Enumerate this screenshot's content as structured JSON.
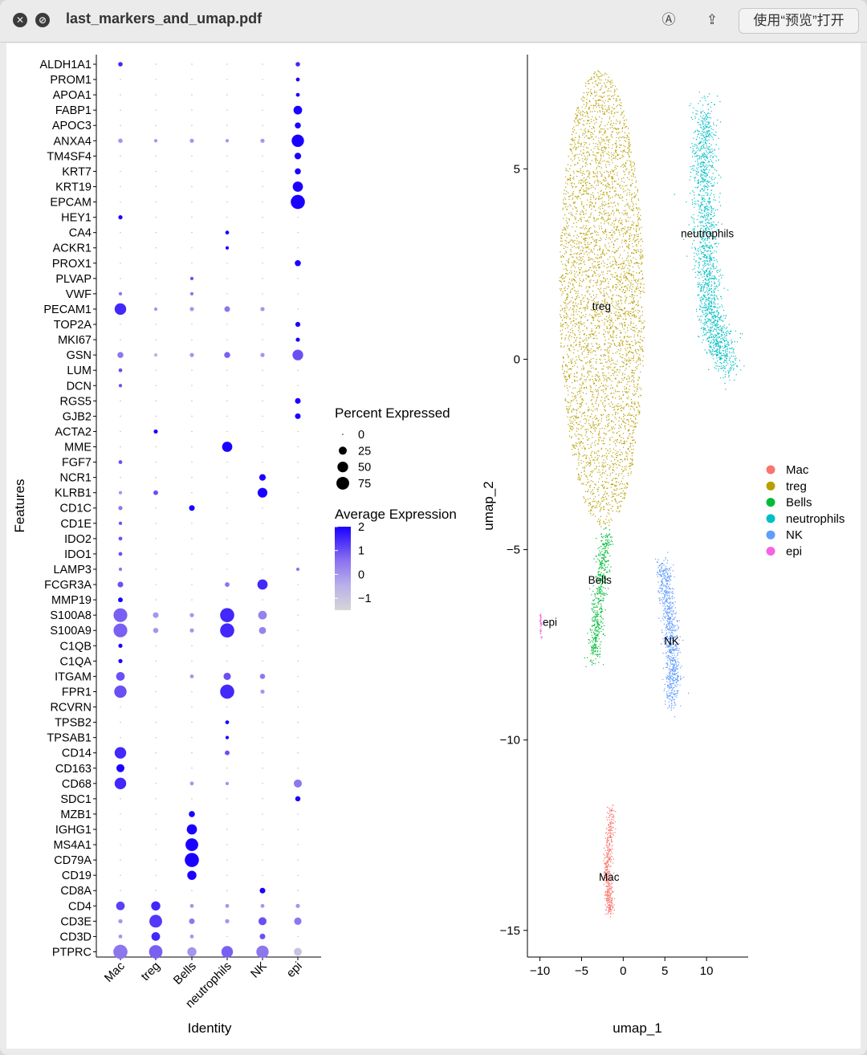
{
  "window": {
    "title": "last_markers_and_umap.pdf",
    "open_button_label": "使用“预览”打开",
    "close_icon": "close-icon",
    "stop_icon": "stop-icon",
    "markup_icon": "markup-icon",
    "share_icon": "share-icon"
  },
  "chart_data": [
    {
      "type": "dotplot",
      "title": "",
      "xlabel": "Identity",
      "ylabel": "Features",
      "categories": [
        "Mac",
        "treg",
        "Bells",
        "neutrophils",
        "NK",
        "epi"
      ],
      "features": [
        "ALDH1A1",
        "PROM1",
        "APOA1",
        "FABP1",
        "APOC3",
        "ANXA4",
        "TM4SF4",
        "KRT7",
        "KRT19",
        "EPCAM",
        "HEY1",
        "CA4",
        "ACKR1",
        "PROX1",
        "PLVAP",
        "VWF",
        "PECAM1",
        "TOP2A",
        "MKI67",
        "GSN",
        "LUM",
        "DCN",
        "RGS5",
        "GJB2",
        "ACTA2",
        "MME",
        "FGF7",
        "NCR1",
        "KLRB1",
        "CD1C",
        "CD1E",
        "IDO2",
        "IDO1",
        "LAMP3",
        "FCGR3A",
        "MMP19",
        "S100A8",
        "S100A9",
        "C1QB",
        "C1QA",
        "ITGAM",
        "FPR1",
        "RCVRN",
        "TPSB2",
        "TPSAB1",
        "CD14",
        "CD163",
        "CD68",
        "SDC1",
        "MZB1",
        "IGHG1",
        "MS4A1",
        "CD79A",
        "CD19",
        "CD8A",
        "CD4",
        "CD3E",
        "CD3D",
        "PTPRC"
      ],
      "percent_expressed": [
        [
          5,
          0,
          0,
          0,
          0,
          5
        ],
        [
          0,
          0,
          0,
          0,
          0,
          3
        ],
        [
          0,
          0,
          0,
          0,
          0,
          3
        ],
        [
          0,
          0,
          0,
          0,
          0,
          30
        ],
        [
          0,
          0,
          0,
          0,
          0,
          12
        ],
        [
          5,
          2,
          4,
          2,
          4,
          70
        ],
        [
          0,
          0,
          0,
          0,
          0,
          15
        ],
        [
          0,
          0,
          0,
          0,
          0,
          12
        ],
        [
          0,
          0,
          0,
          0,
          0,
          45
        ],
        [
          0,
          0,
          0,
          0,
          0,
          95
        ],
        [
          4,
          0,
          0,
          0,
          0,
          0
        ],
        [
          0,
          0,
          0,
          3,
          0,
          0
        ],
        [
          0,
          0,
          0,
          2,
          0,
          0
        ],
        [
          0,
          0,
          0,
          0,
          0,
          12
        ],
        [
          0,
          0,
          2,
          0,
          0,
          0
        ],
        [
          2,
          0,
          2,
          0,
          0,
          0
        ],
        [
          60,
          2,
          4,
          10,
          4,
          0
        ],
        [
          0,
          0,
          0,
          0,
          0,
          7
        ],
        [
          0,
          0,
          0,
          0,
          0,
          4
        ],
        [
          12,
          2,
          4,
          12,
          4,
          50
        ],
        [
          3,
          0,
          0,
          0,
          0,
          0
        ],
        [
          2,
          0,
          0,
          0,
          0,
          0
        ],
        [
          0,
          0,
          0,
          0,
          0,
          10
        ],
        [
          0,
          0,
          0,
          0,
          0,
          10
        ],
        [
          0,
          4,
          0,
          0,
          0,
          0
        ],
        [
          0,
          0,
          0,
          45,
          0,
          0
        ],
        [
          3,
          0,
          0,
          0,
          0,
          0
        ],
        [
          0,
          0,
          0,
          0,
          15,
          0
        ],
        [
          2,
          6,
          0,
          0,
          40,
          0
        ],
        [
          4,
          0,
          10,
          0,
          0,
          0
        ],
        [
          2,
          0,
          0,
          0,
          0,
          0
        ],
        [
          3,
          0,
          0,
          0,
          0,
          0
        ],
        [
          3,
          0,
          0,
          0,
          0,
          0
        ],
        [
          2,
          0,
          0,
          0,
          0,
          2
        ],
        [
          10,
          0,
          0,
          6,
          45,
          0
        ],
        [
          6,
          0,
          0,
          0,
          0,
          0
        ],
        [
          90,
          10,
          4,
          95,
          30,
          0
        ],
        [
          90,
          8,
          4,
          95,
          18,
          0
        ],
        [
          4,
          0,
          0,
          0,
          0,
          0
        ],
        [
          4,
          0,
          0,
          0,
          0,
          0
        ],
        [
          30,
          0,
          3,
          20,
          8,
          0
        ],
        [
          70,
          0,
          0,
          95,
          4,
          0
        ],
        [
          0,
          0,
          0,
          0,
          0,
          0
        ],
        [
          0,
          0,
          0,
          3,
          0,
          0
        ],
        [
          0,
          0,
          0,
          2,
          0,
          0
        ],
        [
          60,
          0,
          0,
          6,
          0,
          0
        ],
        [
          25,
          0,
          0,
          0,
          0,
          0
        ],
        [
          60,
          0,
          3,
          2,
          0,
          25
        ],
        [
          0,
          0,
          0,
          0,
          0,
          8
        ],
        [
          0,
          0,
          12,
          0,
          0,
          0
        ],
        [
          0,
          0,
          45,
          0,
          0,
          0
        ],
        [
          0,
          0,
          75,
          0,
          0,
          0
        ],
        [
          0,
          0,
          95,
          0,
          0,
          0
        ],
        [
          0,
          0,
          35,
          0,
          0,
          0
        ],
        [
          0,
          0,
          0,
          0,
          10,
          0
        ],
        [
          30,
          35,
          3,
          3,
          3,
          4
        ],
        [
          4,
          75,
          10,
          4,
          25,
          20
        ],
        [
          3,
          30,
          3,
          0,
          10,
          0
        ],
        [
          95,
          85,
          35,
          60,
          70,
          25
        ]
      ],
      "average_expression": [
        [
          1.5,
          -1,
          -1,
          -1,
          -1,
          1.5
        ],
        [
          -1,
          -1,
          -1,
          -1,
          -1,
          2
        ],
        [
          -1,
          -1,
          -1,
          -1,
          -1,
          2
        ],
        [
          -1,
          -1,
          -1,
          -1,
          -1,
          2
        ],
        [
          -1,
          -1,
          -1,
          -1,
          -1,
          2
        ],
        [
          0,
          0,
          0,
          0,
          0,
          2
        ],
        [
          -1,
          -1,
          -1,
          -1,
          -1,
          2
        ],
        [
          -1,
          -1,
          -1,
          -1,
          -1,
          2
        ],
        [
          -1,
          -1,
          -1,
          -1,
          -1,
          2
        ],
        [
          -1,
          -1,
          -1,
          -1,
          -1,
          2
        ],
        [
          2,
          -1,
          -1,
          -1,
          -1,
          -1
        ],
        [
          -1,
          -1,
          -1,
          2,
          -1,
          -1
        ],
        [
          -1,
          -1,
          -1,
          2,
          -1,
          -1
        ],
        [
          -1,
          -1,
          -1,
          -1,
          -1,
          2
        ],
        [
          -1,
          -1,
          1,
          -1,
          -1,
          -1
        ],
        [
          0.5,
          -1,
          0.5,
          -1,
          -1,
          -1
        ],
        [
          1.5,
          0,
          0,
          0.5,
          0,
          -1
        ],
        [
          -1,
          -1,
          -1,
          -1,
          -1,
          2
        ],
        [
          -1,
          -1,
          -1,
          -1,
          -1,
          2
        ],
        [
          0.5,
          -0.5,
          0,
          0.8,
          0,
          1
        ],
        [
          1,
          -1,
          -1,
          -1,
          -1,
          -1
        ],
        [
          1,
          -1,
          -1,
          -1,
          -1,
          -1
        ],
        [
          -1,
          -1,
          -1,
          -1,
          -1,
          2
        ],
        [
          -1,
          -1,
          -1,
          -1,
          -1,
          2
        ],
        [
          -1,
          2,
          -1,
          -1,
          -1,
          -1
        ],
        [
          -1,
          -1,
          -1,
          2,
          -1,
          -1
        ],
        [
          1,
          -1,
          -1,
          -1,
          -1,
          -1
        ],
        [
          -1,
          -1,
          -1,
          -1,
          2,
          -1
        ],
        [
          0,
          1,
          -1,
          -1,
          2,
          -1
        ],
        [
          0.5,
          -1,
          2,
          -1,
          -1,
          -1
        ],
        [
          1,
          -1,
          -1,
          -1,
          -1,
          -1
        ],
        [
          1,
          -1,
          -1,
          -1,
          -1,
          -1
        ],
        [
          1,
          -1,
          -1,
          -1,
          -1,
          -1
        ],
        [
          0.5,
          -1,
          -1,
          -1,
          -1,
          0.5
        ],
        [
          1,
          -1,
          -1,
          0.5,
          1.5,
          -1
        ],
        [
          2,
          -1,
          -1,
          -1,
          -1,
          -1
        ],
        [
          0.8,
          0,
          0,
          1.5,
          0.3,
          -1
        ],
        [
          0.8,
          0,
          0,
          1.5,
          0.3,
          -1
        ],
        [
          2,
          -1,
          -1,
          -1,
          -1,
          -1
        ],
        [
          2,
          -1,
          -1,
          -1,
          -1,
          -1
        ],
        [
          1,
          -1,
          0,
          1,
          0.5,
          -1
        ],
        [
          1,
          -1,
          -1,
          1.5,
          0,
          -1
        ],
        [
          -1,
          -1,
          -1,
          -1,
          -1,
          -1
        ],
        [
          -1,
          -1,
          -1,
          2,
          -1,
          -1
        ],
        [
          -1,
          -1,
          -1,
          2,
          -1,
          -1
        ],
        [
          1.5,
          -1,
          -1,
          1,
          -1,
          -1
        ],
        [
          2,
          -1,
          -1,
          -1,
          -1,
          -1
        ],
        [
          1.5,
          -1,
          0,
          0,
          -1,
          0.5
        ],
        [
          -1,
          -1,
          -1,
          -1,
          -1,
          2
        ],
        [
          -1,
          -1,
          2,
          -1,
          -1,
          -1
        ],
        [
          -1,
          -1,
          2,
          -1,
          -1,
          -1
        ],
        [
          -1,
          -1,
          2,
          -1,
          -1,
          -1
        ],
        [
          -1,
          -1,
          2,
          -1,
          -1,
          -1
        ],
        [
          -1,
          -1,
          2,
          -1,
          -1,
          -1
        ],
        [
          -1,
          -1,
          -1,
          -1,
          2,
          -1
        ],
        [
          1.2,
          1.5,
          0,
          0,
          0,
          0
        ],
        [
          0,
          1.3,
          0.5,
          0,
          1,
          0.5
        ],
        [
          0,
          1.5,
          0,
          -1,
          1,
          -1
        ],
        [
          0.5,
          0.8,
          0,
          0.8,
          0.5,
          -1
        ]
      ],
      "legend_size": {
        "title": "Percent Expressed",
        "values": [
          0,
          25,
          50,
          75
        ]
      },
      "legend_color": {
        "title": "Average Expression",
        "ticks": [
          2,
          1,
          0,
          -1
        ],
        "range": [
          -1.5,
          2
        ],
        "low_color": "#d6d6d6",
        "high_color": "#0000ff"
      }
    },
    {
      "type": "scatter",
      "title": "",
      "xlabel": "umap_1",
      "ylabel": "umap_2",
      "xlim": [
        -11.5,
        15
      ],
      "ylim": [
        -15.7,
        8
      ],
      "xticks": [
        -10,
        -5,
        0,
        5,
        10
      ],
      "yticks": [
        5,
        0,
        -5,
        -10,
        -15
      ],
      "x_tick_labels": [
        "−10",
        "−5",
        "0",
        "5",
        "10"
      ],
      "y_tick_labels": [
        "5",
        "0",
        "−5",
        "−10",
        "−15"
      ],
      "legend_position": "right",
      "series": [
        {
          "name": "Mac",
          "color": "#F8766D",
          "label_pos": [
            -1.7,
            -13.7
          ],
          "centerline": [
            [
              -1.5,
              -11.8
            ],
            [
              -1.7,
              -12.6
            ],
            [
              -1.9,
              -13.3
            ],
            [
              -1.8,
              -14
            ],
            [
              -1.6,
              -14.5
            ]
          ],
          "spread": 0.25,
          "n": 420
        },
        {
          "name": "treg",
          "color": "#B79F00",
          "label_pos": [
            -2.6,
            1.3
          ],
          "ellipse": {
            "center": [
              -2.6,
              1.6
            ],
            "rx": 5.2,
            "ry": 6.0,
            "tilt": 0.22
          },
          "n": 4200
        },
        {
          "name": "Bells",
          "color": "#00BA38",
          "label_pos": [
            -2.8,
            -5.9
          ],
          "centerline": [
            [
              -2.0,
              -4.6
            ],
            [
              -2.5,
              -5.4
            ],
            [
              -3.0,
              -6.2
            ],
            [
              -3.3,
              -7.0
            ],
            [
              -3.6,
              -7.9
            ]
          ],
          "spread": 0.4,
          "n": 520
        },
        {
          "name": "neutrophils",
          "color": "#00BFC4",
          "label_pos": [
            10.1,
            3.2
          ],
          "centerline": [
            [
              9.8,
              6.6
            ],
            [
              9.6,
              5.0
            ],
            [
              9.8,
              3.2
            ],
            [
              10.2,
              1.6
            ],
            [
              11.0,
              0.6
            ],
            [
              12.8,
              -0.1
            ]
          ],
          "spread": 0.75,
          "n": 1700
        },
        {
          "name": "NK",
          "color": "#619CFF",
          "label_pos": [
            5.8,
            -7.5
          ],
          "centerline": [
            [
              4.8,
              -5.4
            ],
            [
              5.2,
              -6.3
            ],
            [
              5.7,
              -7.2
            ],
            [
              5.9,
              -8.1
            ],
            [
              5.8,
              -9.0
            ]
          ],
          "spread": 0.45,
          "n": 850
        },
        {
          "name": "epi",
          "color": "#F564E3",
          "label_pos": [
            -8.8,
            -7.0
          ],
          "centerline": [
            [
              -10.0,
              -6.7
            ],
            [
              -9.9,
              -7.3
            ]
          ],
          "spread": 0.06,
          "n": 40
        }
      ]
    }
  ]
}
